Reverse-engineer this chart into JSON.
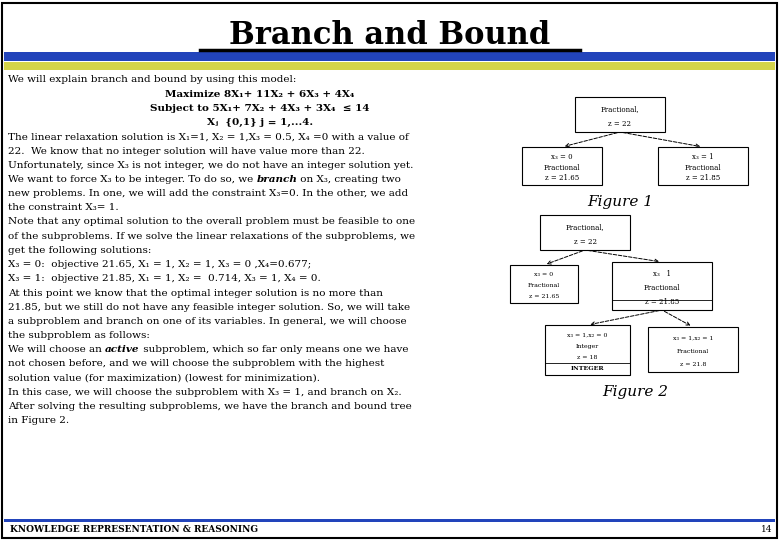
{
  "title": "Branch and Bound",
  "header_blue": "#2244BB",
  "header_yellow": "#D4D44A",
  "footer_text": "KNOWLEDGE REPRESENTATION & REASONING",
  "footer_page": "14",
  "bg": "#FFFFFF",
  "border_color": "#000000",
  "fig1_label": "Figure 1",
  "fig2_label": "Figure 2",
  "body_lines": [
    [
      "We will explain branch and bound by using this model:",
      "normal"
    ],
    [
      "Maximize 8X₁+ 11X₂ + 6X₃ + 4X₄",
      "bold_center"
    ],
    [
      "Subject to 5X₁+ 7X₂ + 4X₃ + 3X₄  ≤ 14",
      "bold_center"
    ],
    [
      "Xⱼ  {0,1} j = 1,...4.",
      "bold_center"
    ],
    [
      "The linear relaxation solution is X₁=1, X₂ = 1,X₃ = 0.5, X₄ =0 with a value of",
      "normal"
    ],
    [
      "22.  We know that no integer solution will have value more than 22.",
      "normal"
    ],
    [
      "Unfortunately, since X₃ is not integer, we do not have an integer solution yet.",
      "normal"
    ],
    [
      "We want to force X₃ to be integer. To do so, we [branch] on X₃, creating two",
      "branch"
    ],
    [
      "new problems. In one, we will add the constraint X₃=0. In the other, we add",
      "normal"
    ],
    [
      "the constraint X₃= 1.",
      "normal"
    ],
    [
      "Note that any optimal solution to the overall problem must be feasible to one",
      "normal"
    ],
    [
      "of the subproblems. If we solve the linear relaxations of the subproblems, we",
      "normal"
    ],
    [
      "get the following solutions:",
      "normal"
    ],
    [
      "X₃ = 0:  objective 21.65, X₁ = 1, X₂ = 1, X₃ = 0 ,X₄=0.677;",
      "normal"
    ],
    [
      "X₃ = 1:  objective 21.85, X₁ = 1, X₂ =  0.714, X₃ = 1, X₄ = 0.",
      "normal"
    ],
    [
      "At this point we know that the optimal integer solution is no more than",
      "normal"
    ],
    [
      "21.85, but we still do not have any feasible integer solution. So, we will take",
      "normal"
    ],
    [
      "a subproblem and branch on one of its variables. In general, we will choose",
      "normal"
    ],
    [
      "the subproblem as follows:",
      "normal"
    ],
    [
      "We will choose an [active] subproblem, which so far only means one we have",
      "active"
    ],
    [
      "not chosen before, and we will choose the subproblem with the highest",
      "normal"
    ],
    [
      "solution value (for maximization) (lowest for minimization).",
      "normal"
    ],
    [
      "In this case, we will choose the subproblem with X₃ = 1, and branch on X₂.",
      "normal"
    ],
    [
      "After solving the resulting subproblems, we have the branch and bound tree",
      "normal"
    ],
    [
      "in Figure 2.",
      "normal"
    ]
  ]
}
